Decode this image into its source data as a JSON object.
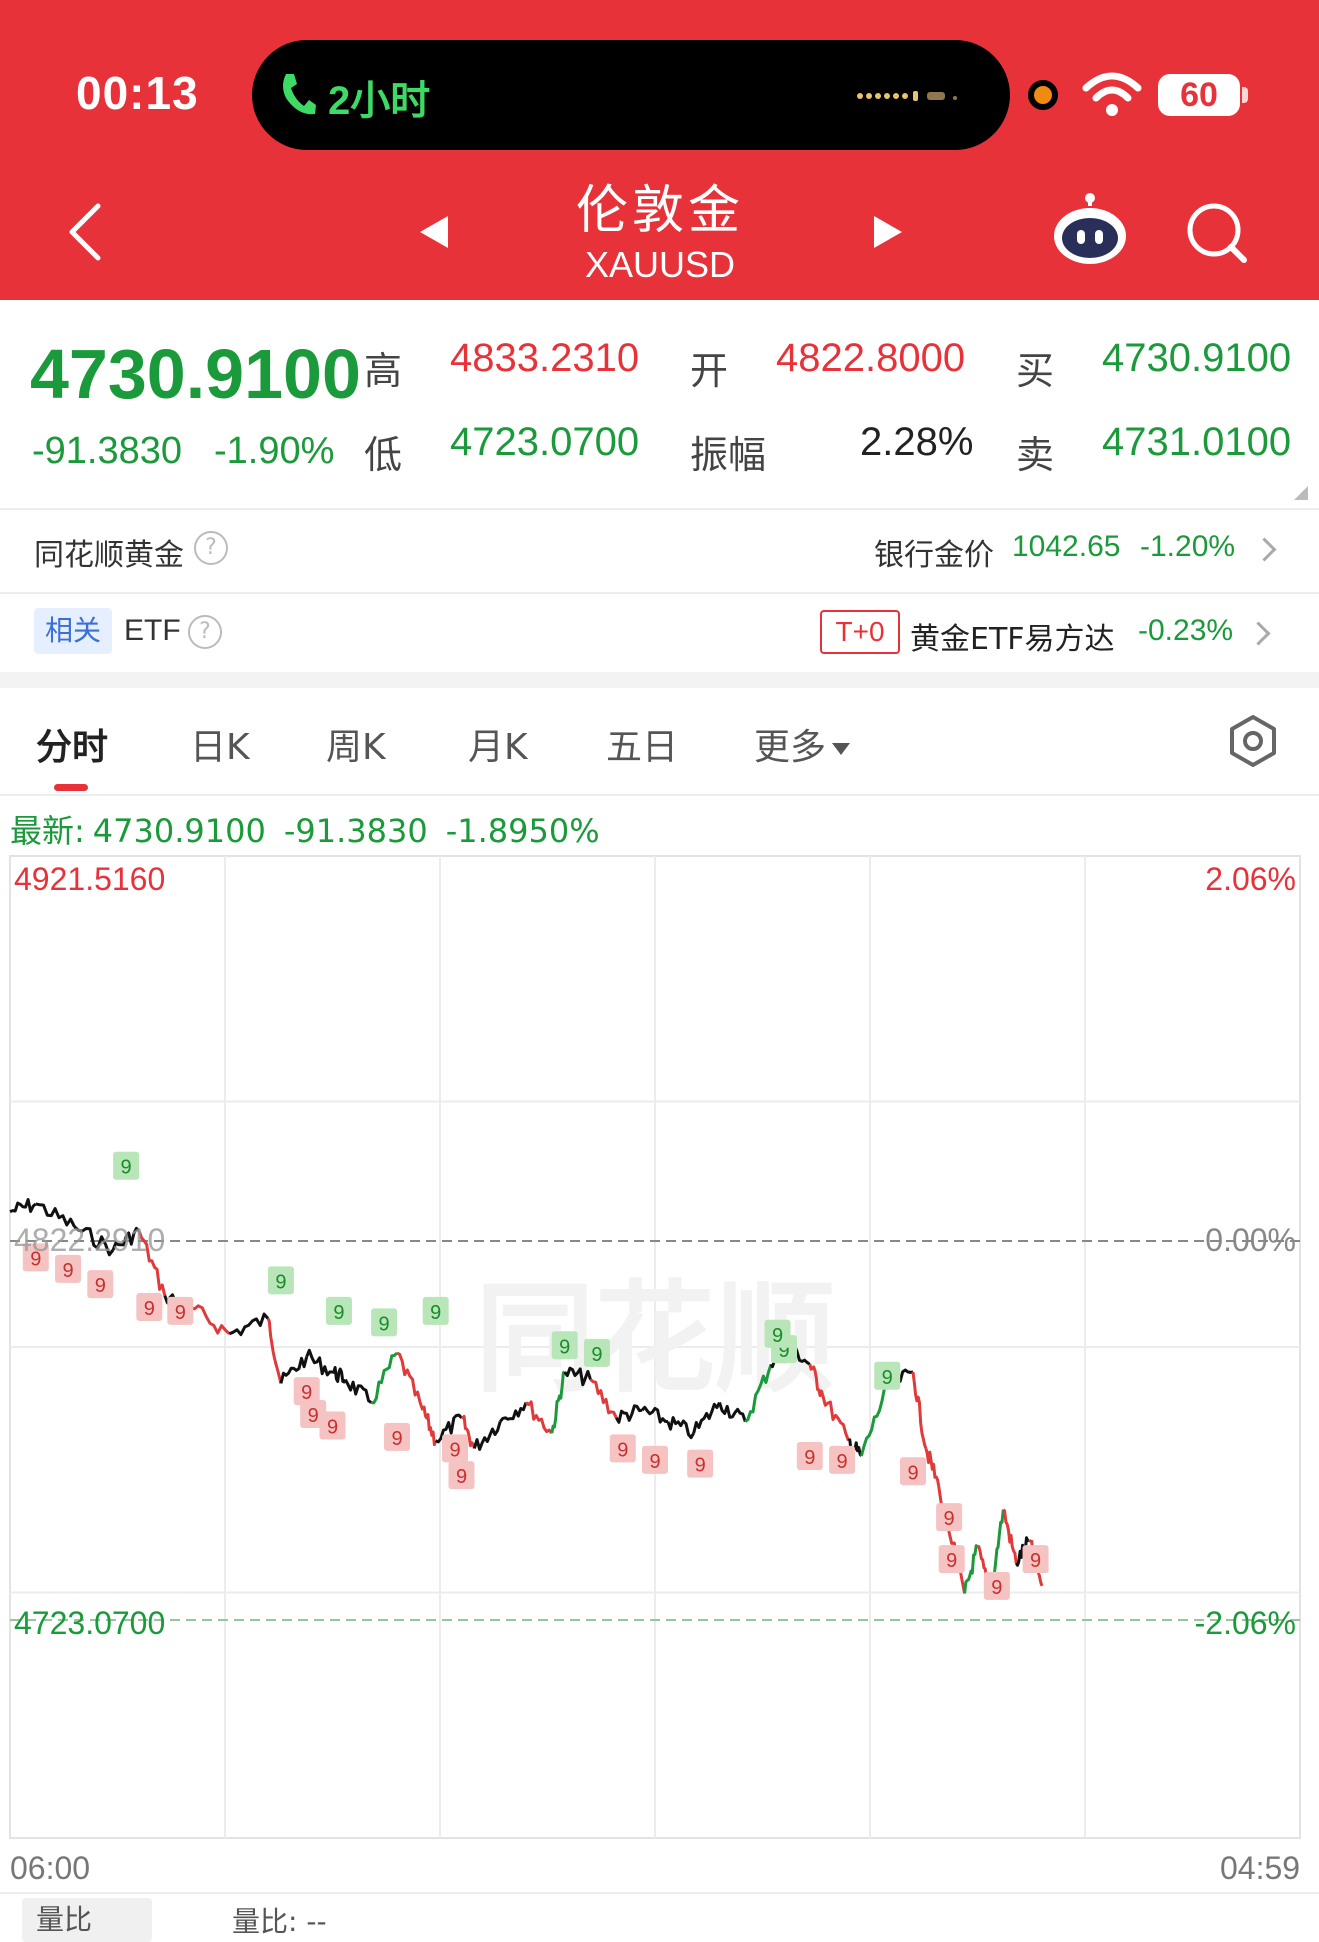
{
  "status_bar": {
    "time": "00:13",
    "call_text": "2小时",
    "battery": "60"
  },
  "header": {
    "title": "伦敦金",
    "subtitle": "XAUUSD"
  },
  "quote": {
    "price": "4730.9100",
    "change": "-91.3830",
    "change_pct": "-1.90%",
    "high_label": "高",
    "high": "4833.2310",
    "open_label": "开",
    "open": "4822.8000",
    "buy_label": "买",
    "buy": "4730.9100",
    "low_label": "低",
    "low": "4723.0700",
    "amp_label": "振幅",
    "amplitude": "2.28%",
    "sell_label": "卖",
    "sell": "4731.0100"
  },
  "info": {
    "ths_gold": "同花顺黄金",
    "bank_gold_label": "银行金价",
    "bank_gold_value": "1042.65",
    "bank_gold_pct": "-1.20%",
    "related_tag": "相关",
    "etf_label": "ETF",
    "t0_tag": "T+0",
    "etf_name": "黄金ETF易方达",
    "etf_pct": "-0.23%"
  },
  "tabs": [
    {
      "label": "分时",
      "active": true
    },
    {
      "label": "日K"
    },
    {
      "label": "周K"
    },
    {
      "label": "月K"
    },
    {
      "label": "五日"
    },
    {
      "label": "更多"
    }
  ],
  "latest": {
    "label": "最新:",
    "price": "4730.9100",
    "change": "-91.3830",
    "pct": "-1.8950%"
  },
  "chart_data": {
    "type": "line",
    "y_max_label": "4921.5160",
    "y_mid_label": "4822.2910",
    "y_min_label": "4723.0700",
    "pct_max_label": "2.06%",
    "pct_mid_label": "0.00%",
    "pct_min_label": "-2.06%",
    "x_start": "06:00",
    "x_end": "04:59",
    "ylim": [
      4723.07,
      4921.516
    ],
    "reference": 4822.291,
    "watermark": "同花顺",
    "series": [
      {
        "x_frac": [
          0,
          0.02,
          0.05,
          0.08,
          0.1,
          0.12,
          0.14,
          0.17,
          0.2,
          0.21,
          0.23,
          0.25,
          0.26,
          0.28,
          0.3,
          0.32,
          0.33,
          0.35,
          0.36,
          0.38,
          0.4,
          0.42,
          0.43,
          0.45,
          0.47,
          0.49,
          0.51,
          0.53,
          0.55,
          0.57,
          0.59,
          0.6,
          0.62,
          0.63,
          0.65,
          0.66,
          0.68,
          0.7,
          0.71,
          0.72,
          0.74,
          0.75,
          0.76,
          0.77,
          0.78,
          0.79,
          0.8
        ],
        "y": [
          4830,
          4832,
          4826,
          4820,
          4825,
          4808,
          4805,
          4798,
          4802,
          4785,
          4792,
          4788,
          4786,
          4780,
          4793,
          4778,
          4770,
          4776,
          4768,
          4775,
          4780,
          4772,
          4788,
          4786,
          4776,
          4778,
          4775,
          4772,
          4780,
          4775,
          4790,
          4796,
          4790,
          4782,
          4770,
          4766,
          4784,
          4788,
          4768,
          4758,
          4730,
          4742,
          4730,
          4752,
          4738,
          4744,
          4732
        ]
      }
    ],
    "markers": [
      {
        "x_frac": 0.09,
        "y": 4842,
        "type": "buy"
      },
      {
        "x_frac": 0.02,
        "y": 4818,
        "type": "sell"
      },
      {
        "x_frac": 0.045,
        "y": 4815,
        "type": "sell"
      },
      {
        "x_frac": 0.07,
        "y": 4811,
        "type": "sell"
      },
      {
        "x_frac": 0.108,
        "y": 4805,
        "type": "sell"
      },
      {
        "x_frac": 0.132,
        "y": 4804,
        "type": "sell"
      },
      {
        "x_frac": 0.21,
        "y": 4812,
        "type": "buy"
      },
      {
        "x_frac": 0.255,
        "y": 4804,
        "type": "buy"
      },
      {
        "x_frac": 0.29,
        "y": 4801,
        "type": "buy"
      },
      {
        "x_frac": 0.33,
        "y": 4804,
        "type": "buy"
      },
      {
        "x_frac": 0.23,
        "y": 4783,
        "type": "sell"
      },
      {
        "x_frac": 0.235,
        "y": 4777,
        "type": "sell"
      },
      {
        "x_frac": 0.25,
        "y": 4774,
        "type": "sell"
      },
      {
        "x_frac": 0.3,
        "y": 4771,
        "type": "sell"
      },
      {
        "x_frac": 0.345,
        "y": 4768,
        "type": "sell"
      },
      {
        "x_frac": 0.35,
        "y": 4761,
        "type": "sell"
      },
      {
        "x_frac": 0.43,
        "y": 4795,
        "type": "buy"
      },
      {
        "x_frac": 0.455,
        "y": 4793,
        "type": "buy"
      },
      {
        "x_frac": 0.475,
        "y": 4768,
        "type": "sell"
      },
      {
        "x_frac": 0.5,
        "y": 4765,
        "type": "sell"
      },
      {
        "x_frac": 0.535,
        "y": 4764,
        "type": "sell"
      },
      {
        "x_frac": 0.6,
        "y": 4794,
        "type": "buy"
      },
      {
        "x_frac": 0.595,
        "y": 4798,
        "type": "buy"
      },
      {
        "x_frac": 0.62,
        "y": 4766,
        "type": "sell"
      },
      {
        "x_frac": 0.645,
        "y": 4765,
        "type": "sell"
      },
      {
        "x_frac": 0.68,
        "y": 4787,
        "type": "buy"
      },
      {
        "x_frac": 0.7,
        "y": 4762,
        "type": "sell"
      },
      {
        "x_frac": 0.728,
        "y": 4750,
        "type": "sell"
      },
      {
        "x_frac": 0.73,
        "y": 4739,
        "type": "sell"
      },
      {
        "x_frac": 0.765,
        "y": 4732,
        "type": "sell"
      },
      {
        "x_frac": 0.795,
        "y": 4739,
        "type": "sell"
      }
    ]
  },
  "bottom": {
    "vol_btn": "量比",
    "vol_label": "量比: --"
  },
  "colors": {
    "header": "#e8323a",
    "up": "#e8323a",
    "down": "#1a9a3a"
  }
}
